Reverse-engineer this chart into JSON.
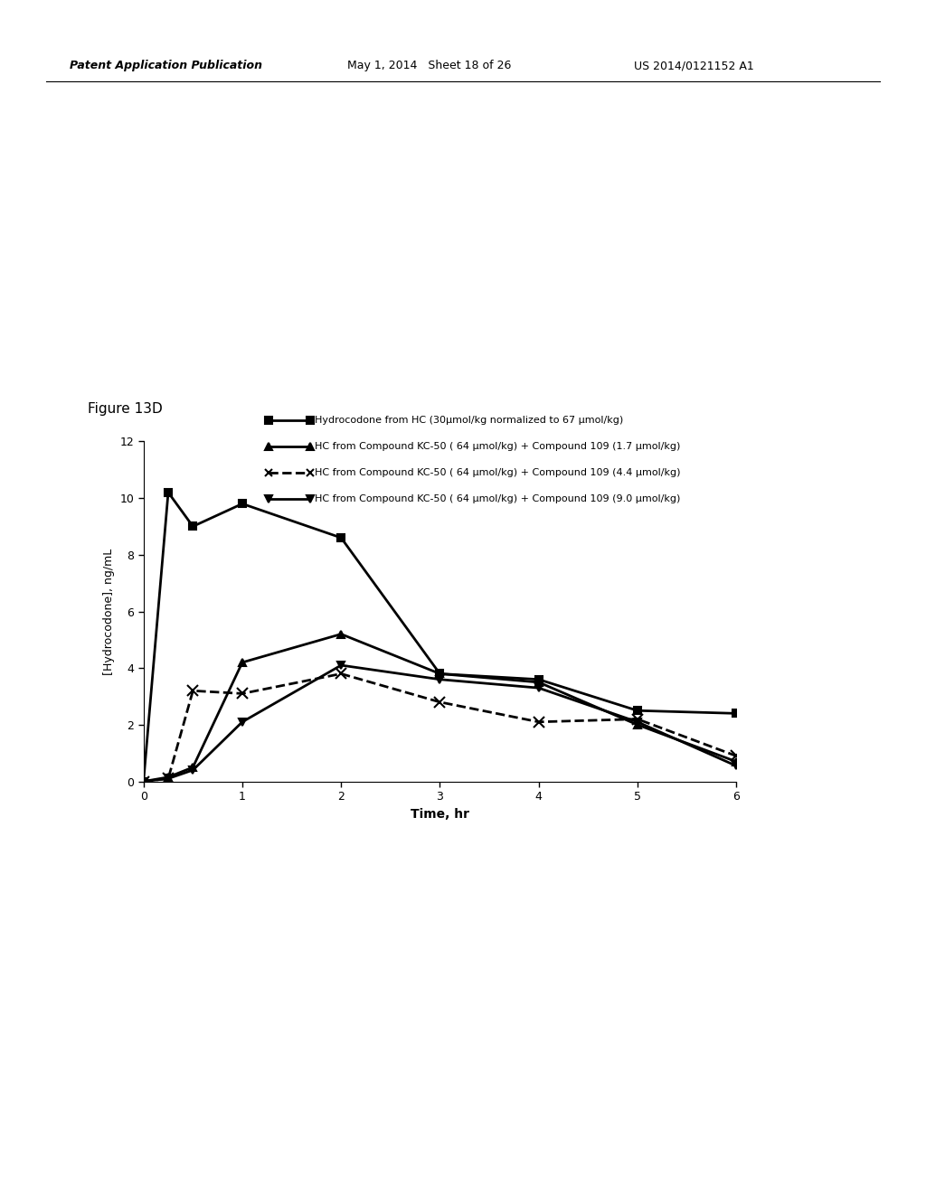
{
  "figure_label": "Figure 13D",
  "header_left": "Patent Application Publication",
  "header_date": "May 1, 2014   Sheet 18 of 26",
  "header_right": "US 2014/0121152 A1",
  "ylabel": "[Hydrocodone], ng/mL",
  "xlabel": "Time, hr",
  "ylim": [
    0,
    12
  ],
  "xlim": [
    0,
    6
  ],
  "yticks": [
    0,
    2,
    4,
    6,
    8,
    10,
    12
  ],
  "xticks": [
    0,
    1,
    2,
    3,
    4,
    5,
    6
  ],
  "series": [
    {
      "label": "Hydrocodone from HC (30μmol/kg normalized to 67 μmol/kg)",
      "x": [
        0,
        0.25,
        0.5,
        1.0,
        2.0,
        3.0,
        4.0,
        5.0,
        6.0
      ],
      "y": [
        0,
        10.2,
        9.0,
        9.8,
        8.6,
        3.8,
        3.6,
        2.5,
        2.4
      ],
      "linestyle": "solid",
      "color": "#000000",
      "marker": "s",
      "linewidth": 2.0,
      "markersize": 6
    },
    {
      "label": "HC from Compound KC-50 ( 64 μmol/kg) + Compound 109 (1.7 μmol/kg)",
      "x": [
        0,
        0.25,
        0.5,
        1.0,
        2.0,
        3.0,
        4.0,
        5.0,
        6.0
      ],
      "y": [
        0,
        0.15,
        0.5,
        4.2,
        5.2,
        3.8,
        3.5,
        2.0,
        0.7
      ],
      "linestyle": "solid",
      "color": "#000000",
      "marker": "^",
      "linewidth": 2.0,
      "markersize": 6
    },
    {
      "label": "HC from Compound KC-50 ( 64 μmol/kg) + Compound 109 (4.4 μmol/kg)",
      "x": [
        0,
        0.25,
        0.5,
        1.0,
        2.0,
        3.0,
        4.0,
        5.0,
        6.0
      ],
      "y": [
        0,
        0.1,
        3.2,
        3.1,
        3.8,
        2.8,
        2.1,
        2.2,
        0.9
      ],
      "linestyle": "dashed",
      "color": "#000000",
      "marker": "x",
      "linewidth": 2.0,
      "markersize": 8
    },
    {
      "label": "HC from Compound KC-50 ( 64 μmol/kg) + Compound 109 (9.0 μmol/kg)",
      "x": [
        0,
        0.25,
        0.5,
        1.0,
        2.0,
        3.0,
        4.0,
        5.0,
        6.0
      ],
      "y": [
        0,
        0.1,
        0.4,
        2.1,
        4.1,
        3.6,
        3.3,
        2.1,
        0.55
      ],
      "linestyle": "solid",
      "color": "#000000",
      "marker": "v",
      "linewidth": 2.0,
      "markersize": 6
    }
  ],
  "legend_entries": [
    {
      "linestyle": "solid",
      "marker": "s"
    },
    {
      "linestyle": "solid",
      "marker": "^"
    },
    {
      "linestyle": "dashed",
      "marker": "x"
    },
    {
      "linestyle": "solid",
      "marker": "v"
    }
  ]
}
